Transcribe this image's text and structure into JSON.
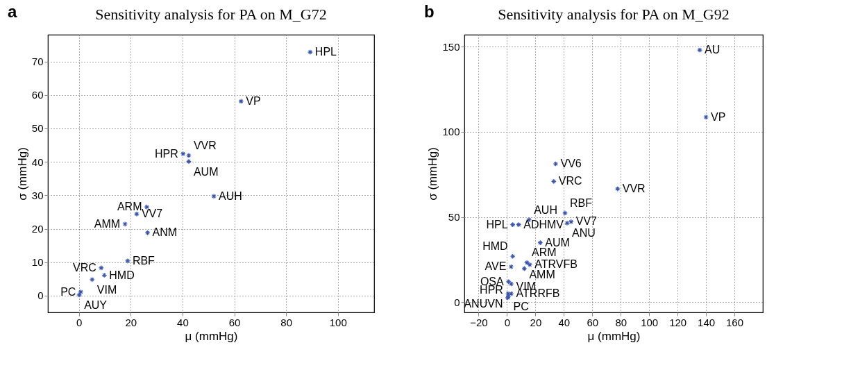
{
  "chart_data": [
    {
      "type": "scatter",
      "title": "Sensitivity analysis for PA on M_G72",
      "xlabel": "μ (mmHg)",
      "ylabel": "σ (mmHg)",
      "marker": "cross",
      "grid": true,
      "xlim": [
        -12,
        114
      ],
      "ylim": [
        -5,
        78
      ],
      "xticks": [
        0,
        20,
        40,
        60,
        80,
        100
      ],
      "yticks": [
        0,
        10,
        20,
        30,
        40,
        50,
        60,
        70
      ],
      "x": [
        89.3,
        62.6,
        40.2,
        42.4,
        42.4,
        52.1,
        26.2,
        22.3,
        17.8,
        26.5,
        18.8,
        8.6,
        9.8,
        5.1,
        0.7,
        0.1
      ],
      "series": [
        {
          "color": "#3a55b0",
          "values": [
            72.8,
            58.1,
            42.4,
            41.9,
            40.1,
            29.7,
            26.5,
            24.4,
            21.4,
            18.8,
            10.4,
            8.3,
            6.1,
            4.8,
            1.1,
            0.2
          ]
        }
      ],
      "annotations": [
        "a",
        {
          "text": "HPL",
          "x": 89.3,
          "y": 72.8
        },
        {
          "text": "VP",
          "x": 62.6,
          "y": 58.1
        },
        {
          "text": "HPR",
          "x": 40.2,
          "y": 42.4
        },
        {
          "text": "VVR",
          "x": 42.4,
          "y": 41.9
        },
        {
          "text": "AUM",
          "x": 42.4,
          "y": 40.1
        },
        {
          "text": "AUH",
          "x": 52.1,
          "y": 29.7
        },
        {
          "text": "ARM",
          "x": 26.2,
          "y": 26.5
        },
        {
          "text": "VV7",
          "x": 22.3,
          "y": 24.4
        },
        {
          "text": "AMM",
          "x": 17.8,
          "y": 21.4
        },
        {
          "text": "ANM",
          "x": 26.5,
          "y": 18.8
        },
        {
          "text": "RBF",
          "x": 18.8,
          "y": 10.4
        },
        {
          "text": "VRC",
          "x": 8.6,
          "y": 8.3
        },
        {
          "text": "HMD",
          "x": 9.8,
          "y": 6.1
        },
        {
          "text": "VIM",
          "x": 5.1,
          "y": 4.8
        },
        {
          "text": "PC",
          "x": 0.7,
          "y": 1.1
        },
        {
          "text": "AUY",
          "x": 0.1,
          "y": 0.2
        }
      ]
    },
    {
      "type": "scatter",
      "title": "Sensitivity analysis for PA on M_G92",
      "xlabel": "μ (mmHg)",
      "ylabel": "σ (mmHg)",
      "marker": "cross",
      "grid": true,
      "xlim": [
        -30,
        180
      ],
      "ylim": [
        -6,
        157
      ],
      "xticks": [
        {
          "value": -20,
          "label": "−20"
        },
        0,
        20,
        40,
        60,
        80,
        100,
        120,
        140,
        160
      ],
      "yticks": [
        0,
        50,
        100,
        150
      ],
      "x": [
        135.6,
        140.0,
        34.2,
        32.9,
        77.8,
        40.8,
        15.5,
        4.0,
        8.2,
        45.1,
        42.3,
        23.4,
        4.0,
        14.0,
        16.0,
        2.9,
        12.2,
        1.1,
        3.0,
        3.0,
        0.7,
        0.5,
        1.0
      ],
      "series": [
        {
          "color": "#3a55b0",
          "values": [
            148.0,
            108.6,
            81.2,
            70.9,
            66.5,
            52.3,
            48.4,
            45.5,
            45.5,
            47.2,
            46.4,
            34.9,
            26.9,
            23.2,
            22.0,
            20.8,
            19.7,
            12.0,
            10.7,
            5.0,
            5.0,
            2.6,
            3.4
          ]
        }
      ],
      "annotations": [
        "b",
        {
          "text": "AU",
          "x": 135.6,
          "y": 148.0
        },
        {
          "text": "VP",
          "x": 140.0,
          "y": 108.6
        },
        {
          "text": "VV6",
          "x": 34.2,
          "y": 81.2
        },
        {
          "text": "VRC",
          "x": 32.9,
          "y": 70.9
        },
        {
          "text": "VVR",
          "x": 77.8,
          "y": 66.5
        },
        {
          "text": "RBF",
          "x": 40.8,
          "y": 52.3
        },
        {
          "text": "AUH",
          "x": 15.5,
          "y": 48.4
        },
        {
          "text": "HPL",
          "x": 4.0,
          "y": 45.5
        },
        {
          "text": "ADHMV",
          "x": 8.2,
          "y": 45.5
        },
        {
          "text": "VV7",
          "x": 45.1,
          "y": 47.2
        },
        {
          "text": "ANU",
          "x": 42.3,
          "y": 46.4
        },
        {
          "text": "AUM",
          "x": 23.4,
          "y": 34.9
        },
        {
          "text": "HMD",
          "x": 4.0,
          "y": 26.9
        },
        {
          "text": "ARM",
          "x": 14.0,
          "y": 23.2
        },
        {
          "text": "ATRVFB",
          "x": 16.0,
          "y": 22.0
        },
        {
          "text": "AVE",
          "x": 2.9,
          "y": 20.8
        },
        {
          "text": "AMM",
          "x": 12.2,
          "y": 19.7
        },
        {
          "text": "OSA",
          "x": 1.1,
          "y": 12.0
        },
        {
          "text": "VIM",
          "x": 3.0,
          "y": 10.7
        },
        {
          "text": "ATRRFB",
          "x": 3.0,
          "y": 5.0
        },
        {
          "text": "HPR",
          "x": 0.7,
          "y": 5.0
        },
        {
          "text": "ANUVN",
          "x": 0.5,
          "y": 2.6
        },
        {
          "text": "PC",
          "x": 1.0,
          "y": 3.4
        }
      ]
    }
  ]
}
